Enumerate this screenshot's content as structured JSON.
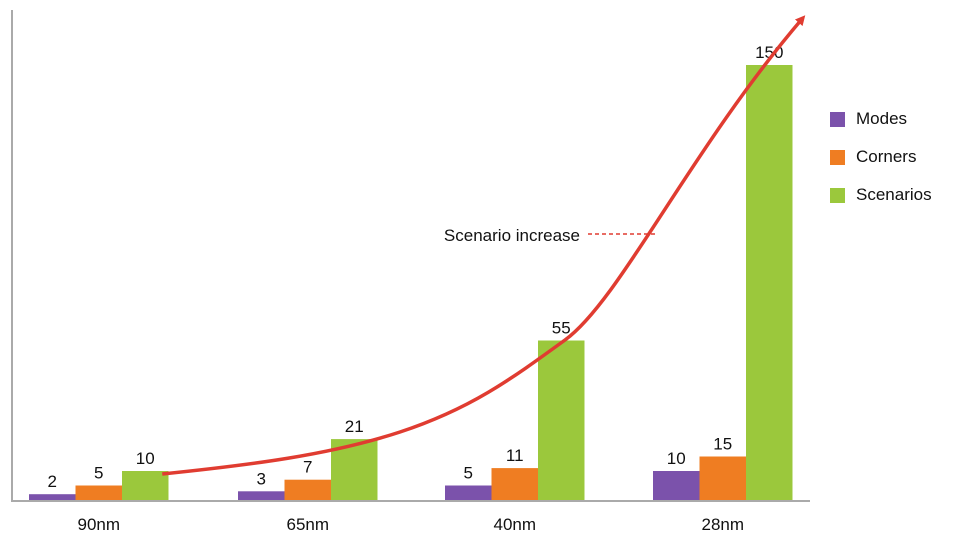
{
  "chart_data": {
    "type": "bar",
    "categories": [
      "90nm",
      "65nm",
      "40nm",
      "28nm"
    ],
    "series": [
      {
        "name": "Modes",
        "values": [
          2,
          3,
          5,
          10
        ],
        "color": "#7b52ab"
      },
      {
        "name": "Corners",
        "values": [
          5,
          7,
          11,
          15
        ],
        "color": "#ef7d22"
      },
      {
        "name": "Scenarios",
        "values": [
          10,
          21,
          55,
          150
        ],
        "color": "#9bc83c"
      }
    ],
    "data_labels": true,
    "ylim": [
      0,
      150
    ],
    "y_axis_ticks_shown": false,
    "grid": false,
    "legend_position": "right",
    "trend_annotation": {
      "label": "Scenario increase",
      "color": "#e03c31",
      "style": "curved arrow over Scenarios bars"
    }
  }
}
